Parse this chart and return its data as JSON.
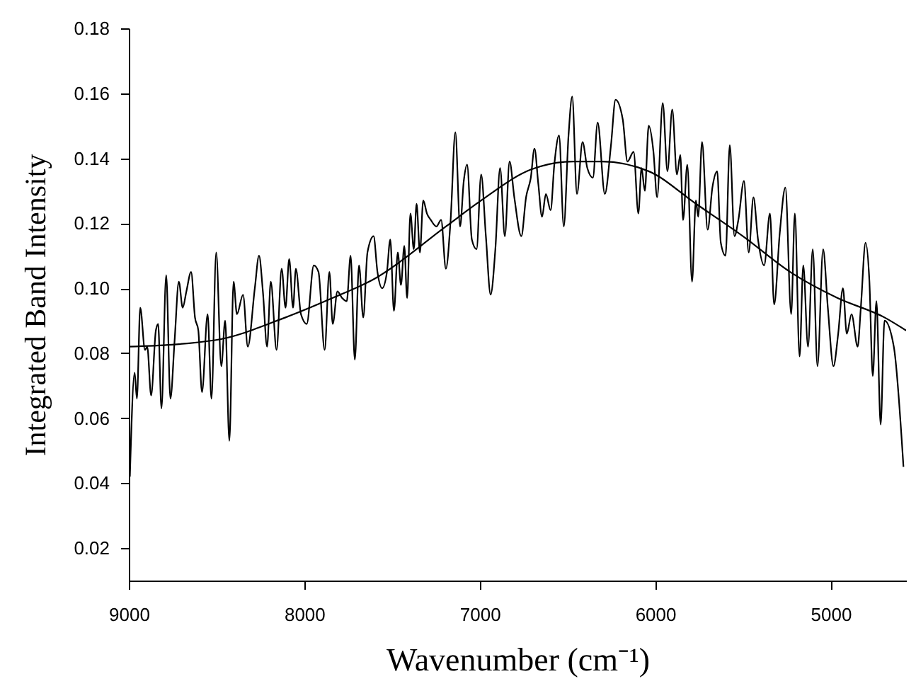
{
  "chart_data": {
    "type": "line",
    "xlabel": "Wavenumber (cm⁻¹)",
    "ylabel": "Integrated Band Intensity",
    "xlim": [
      9000,
      4570
    ],
    "ylim": [
      0.01,
      0.18
    ],
    "xticks": [
      9000,
      8000,
      7000,
      6000,
      5000
    ],
    "yticks": [
      0.02,
      0.04,
      0.06,
      0.08,
      {
        "value": 0.1,
        "label": "0.10"
      },
      0.12,
      0.14,
      0.16,
      0.18
    ],
    "series": [
      {
        "color": "#000000",
        "x": [
          8994,
          8967,
          8954,
          8935,
          8908,
          8895,
          8873,
          8846,
          8833,
          8814,
          8787,
          8763,
          8739,
          8715,
          8693,
          8672,
          8645,
          8623,
          8604,
          8583,
          8551,
          8529,
          8502,
          8473,
          8451,
          8427,
          8403,
          8384,
          8349,
          8322,
          8282,
          8258,
          8236,
          8212,
          8191,
          8158,
          8129,
          8107,
          8086,
          8064,
          8048,
          8019,
          7986,
          7946,
          7919,
          7884,
          7857,
          7838,
          7811,
          7785,
          7758,
          7736,
          7712,
          7688,
          7664,
          7640,
          7605,
          7583,
          7556,
          7529,
          7510,
          7489,
          7467,
          7449,
          7430,
          7414,
          7395,
          7376,
          7360,
          7341,
          7322,
          7301,
          7279,
          7247,
          7220,
          7193,
          7166,
          7139,
          7112,
          7091,
          7072,
          7045,
          7018,
          6992,
          6965,
          6938,
          6911,
          6884,
          6857,
          6830,
          6803,
          6763,
          6736,
          6709,
          6688,
          6666,
          6645,
          6623,
          6596,
          6575,
          6548,
          6521,
          6494,
          6473,
          6446,
          6414,
          6387,
          6355,
          6328,
          6287,
          6252,
          6226,
          6185,
          6158,
          6123,
          6096,
          6078,
          6059,
          6037,
          6010,
          5989,
          5957,
          5930,
          5903,
          5876,
          5857,
          5841,
          5817,
          5790,
          5768,
          5755,
          5733,
          5701,
          5674,
          5647,
          5626,
          5599,
          5575,
          5548,
          5526,
          5494,
          5467,
          5440,
          5414,
          5379,
          5346,
          5322,
          5290,
          5258,
          5225,
          5204,
          5177,
          5156,
          5129,
          5102,
          5075,
          5043,
          5016,
          4984,
          4957,
          4930,
          4908,
          4881,
          4846,
          4828,
          4801,
          4779,
          4760,
          4739,
          4715,
          4693,
          4640,
          4585
        ],
        "values": [
          0.042,
          0.074,
          0.066,
          0.094,
          0.081,
          0.082,
          0.067,
          0.087,
          0.089,
          0.063,
          0.104,
          0.066,
          0.084,
          0.102,
          0.094,
          0.099,
          0.105,
          0.091,
          0.087,
          0.068,
          0.092,
          0.066,
          0.111,
          0.076,
          0.09,
          0.053,
          0.102,
          0.092,
          0.098,
          0.082,
          0.1,
          0.11,
          0.099,
          0.082,
          0.102,
          0.081,
          0.106,
          0.094,
          0.109,
          0.094,
          0.106,
          0.092,
          0.089,
          0.107,
          0.105,
          0.081,
          0.105,
          0.089,
          0.099,
          0.097,
          0.096,
          0.11,
          0.078,
          0.107,
          0.091,
          0.111,
          0.116,
          0.105,
          0.1,
          0.105,
          0.115,
          0.093,
          0.111,
          0.101,
          0.113,
          0.097,
          0.123,
          0.112,
          0.126,
          0.111,
          0.127,
          0.123,
          0.121,
          0.119,
          0.121,
          0.106,
          0.121,
          0.148,
          0.119,
          0.133,
          0.138,
          0.115,
          0.112,
          0.135,
          0.116,
          0.098,
          0.112,
          0.137,
          0.116,
          0.139,
          0.128,
          0.116,
          0.128,
          0.134,
          0.143,
          0.132,
          0.122,
          0.129,
          0.124,
          0.138,
          0.147,
          0.119,
          0.147,
          0.159,
          0.129,
          0.145,
          0.137,
          0.134,
          0.151,
          0.129,
          0.144,
          0.158,
          0.152,
          0.139,
          0.142,
          0.123,
          0.137,
          0.13,
          0.15,
          0.142,
          0.128,
          0.157,
          0.136,
          0.155,
          0.135,
          0.141,
          0.121,
          0.138,
          0.102,
          0.127,
          0.122,
          0.145,
          0.118,
          0.131,
          0.136,
          0.114,
          0.11,
          0.144,
          0.116,
          0.121,
          0.133,
          0.111,
          0.128,
          0.115,
          0.107,
          0.123,
          0.095,
          0.117,
          0.131,
          0.092,
          0.123,
          0.079,
          0.107,
          0.082,
          0.112,
          0.076,
          0.112,
          0.094,
          0.076,
          0.086,
          0.1,
          0.086,
          0.092,
          0.082,
          0.094,
          0.114,
          0.102,
          0.073,
          0.096,
          0.058,
          0.09,
          0.082,
          0.045
        ]
      },
      {
        "color": "#000000",
        "x": [
          9000,
          8510,
          8107,
          7838,
          7596,
          7193,
          6992,
          6709,
          6467,
          6306,
          6037,
          5768,
          5500,
          5231,
          4962,
          4693,
          4570
        ],
        "values": [
          0.082,
          0.084,
          0.091,
          0.097,
          0.103,
          0.119,
          0.127,
          0.1365,
          0.139,
          0.139,
          0.136,
          0.126,
          0.116,
          0.105,
          0.097,
          0.091,
          0.087
        ]
      }
    ]
  }
}
